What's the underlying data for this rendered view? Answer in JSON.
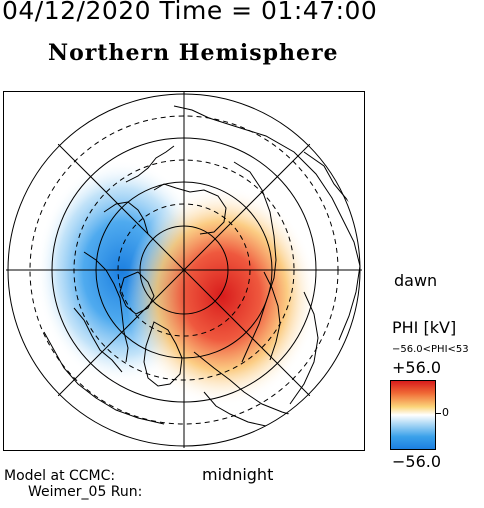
{
  "header": {
    "date_time": "04/12/2020 Time = 01:47:00",
    "title": "Northern Hemisphere"
  },
  "map": {
    "projection": "polar",
    "pole": "north",
    "grid_circles": 3,
    "dashed_circles": 3,
    "meridian_lines": 8,
    "field": [
      {
        "name": "negative-cell",
        "sign": "negative",
        "color": "#1c7fe0"
      },
      {
        "name": "positive-cell",
        "sign": "positive",
        "color": "#d81c1c"
      }
    ]
  },
  "labels": {
    "dawn": "dawn",
    "midnight": "midnight"
  },
  "legend": {
    "title": "PHI [kV]",
    "range_text": "−56.0<PHI<53",
    "max": "+56.0",
    "zero": "0",
    "min": "−56.0",
    "colors": {
      "max": "#d81c1c",
      "mid": "#ffffff",
      "min": "#1c7fe0"
    }
  },
  "footer": {
    "model_line": "Model at CCMC:",
    "run_line": "Weimer_05 Run:"
  }
}
